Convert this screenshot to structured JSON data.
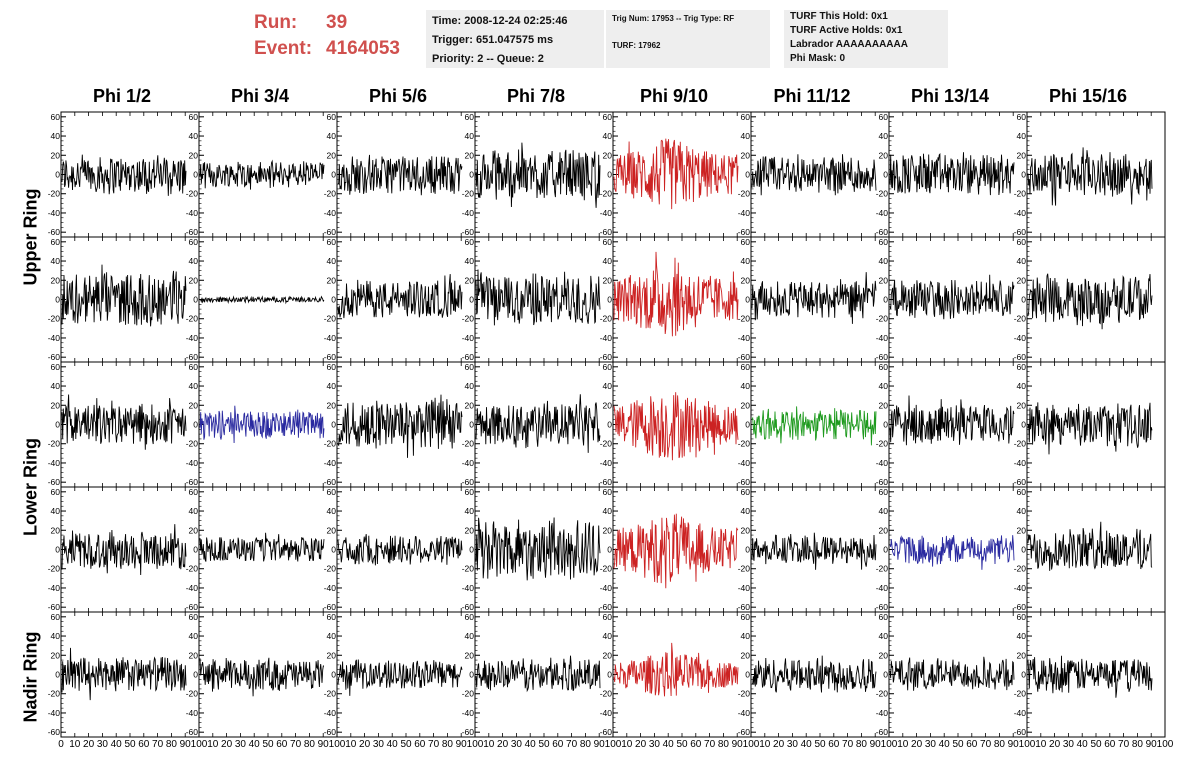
{
  "run": {
    "run_label": "Run:",
    "run_value": "39",
    "event_label": "Event:",
    "event_value": "4164053"
  },
  "info": {
    "time": "Time: 2008-12-24 02:25:46",
    "trigger": "Trigger: 651.047575 ms",
    "priority": "Priority: 2 -- Queue: 2",
    "trig_num": "Trig Num: 17953 -- Trig Type: RF",
    "turf": "TURF: 17962",
    "turf_hold": "TURF This Hold: 0x1",
    "turf_active": "TURF Active Holds: 0x1",
    "labrador": "Labrador AAAAAAAAAA",
    "phi_mask": "Phi Mask: 0"
  },
  "columns": [
    "Phi 1/2",
    "Phi 3/4",
    "Phi 5/6",
    "Phi 7/8",
    "Phi 9/10",
    "Phi 11/12",
    "Phi 13/14",
    "Phi 15/16"
  ],
  "rings": [
    "Upper Ring",
    "Lower Ring",
    "Nadir Ring"
  ],
  "colors": {
    "normal": "#000000",
    "red": "#cc2222",
    "blue": "#2a2aa0",
    "green": "#1e9a1e",
    "accent_text": "#d0504e"
  },
  "chart_data": {
    "type": "line",
    "title": "",
    "xlabel": "",
    "ylabel": "",
    "xlim": [
      0,
      100
    ],
    "ylim": [
      -65,
      65
    ],
    "ytick_labels": [
      "60",
      "40",
      "20",
      "0",
      "-20",
      "-40",
      "-60"
    ],
    "xtick_labels": [
      "0",
      "10",
      "20",
      "30",
      "40",
      "50",
      "60",
      "70",
      "80",
      "90",
      "100"
    ],
    "grid": false,
    "panel_rows": 5,
    "panel_cols": 8,
    "series": [
      {
        "row": 0,
        "col": 0,
        "color": "normal",
        "amplitude": 22
      },
      {
        "row": 0,
        "col": 1,
        "color": "normal",
        "amplitude": 15
      },
      {
        "row": 0,
        "col": 2,
        "color": "normal",
        "amplitude": 22
      },
      {
        "row": 0,
        "col": 3,
        "color": "normal",
        "amplitude": 28
      },
      {
        "row": 0,
        "col": 4,
        "color": "red",
        "amplitude": 38
      },
      {
        "row": 0,
        "col": 5,
        "color": "normal",
        "amplitude": 22
      },
      {
        "row": 0,
        "col": 6,
        "color": "normal",
        "amplitude": 24
      },
      {
        "row": 0,
        "col": 7,
        "color": "normal",
        "amplitude": 24
      },
      {
        "row": 1,
        "col": 0,
        "color": "normal",
        "amplitude": 30
      },
      {
        "row": 1,
        "col": 1,
        "color": "normal",
        "amplitude": 3
      },
      {
        "row": 1,
        "col": 2,
        "color": "normal",
        "amplitude": 22
      },
      {
        "row": 1,
        "col": 3,
        "color": "normal",
        "amplitude": 30
      },
      {
        "row": 1,
        "col": 4,
        "color": "red",
        "amplitude": 40
      },
      {
        "row": 1,
        "col": 5,
        "color": "normal",
        "amplitude": 22
      },
      {
        "row": 1,
        "col": 6,
        "color": "normal",
        "amplitude": 22
      },
      {
        "row": 1,
        "col": 7,
        "color": "normal",
        "amplitude": 27
      },
      {
        "row": 2,
        "col": 0,
        "color": "normal",
        "amplitude": 22
      },
      {
        "row": 2,
        "col": 1,
        "color": "blue",
        "amplitude": 17
      },
      {
        "row": 2,
        "col": 2,
        "color": "normal",
        "amplitude": 28
      },
      {
        "row": 2,
        "col": 3,
        "color": "normal",
        "amplitude": 25
      },
      {
        "row": 2,
        "col": 4,
        "color": "red",
        "amplitude": 38
      },
      {
        "row": 2,
        "col": 5,
        "color": "green",
        "amplitude": 18
      },
      {
        "row": 2,
        "col": 6,
        "color": "normal",
        "amplitude": 22
      },
      {
        "row": 2,
        "col": 7,
        "color": "normal",
        "amplitude": 24
      },
      {
        "row": 3,
        "col": 0,
        "color": "normal",
        "amplitude": 22
      },
      {
        "row": 3,
        "col": 1,
        "color": "normal",
        "amplitude": 14
      },
      {
        "row": 3,
        "col": 2,
        "color": "normal",
        "amplitude": 18
      },
      {
        "row": 3,
        "col": 3,
        "color": "normal",
        "amplitude": 34
      },
      {
        "row": 3,
        "col": 4,
        "color": "red",
        "amplitude": 38
      },
      {
        "row": 3,
        "col": 5,
        "color": "normal",
        "amplitude": 16
      },
      {
        "row": 3,
        "col": 6,
        "color": "blue",
        "amplitude": 16
      },
      {
        "row": 3,
        "col": 7,
        "color": "normal",
        "amplitude": 24
      },
      {
        "row": 4,
        "col": 0,
        "color": "normal",
        "amplitude": 20
      },
      {
        "row": 4,
        "col": 1,
        "color": "normal",
        "amplitude": 18
      },
      {
        "row": 4,
        "col": 2,
        "color": "normal",
        "amplitude": 16
      },
      {
        "row": 4,
        "col": 3,
        "color": "normal",
        "amplitude": 18
      },
      {
        "row": 4,
        "col": 4,
        "color": "red",
        "amplitude": 24
      },
      {
        "row": 4,
        "col": 5,
        "color": "normal",
        "amplitude": 20
      },
      {
        "row": 4,
        "col": 6,
        "color": "normal",
        "amplitude": 17
      },
      {
        "row": 4,
        "col": 7,
        "color": "normal",
        "amplitude": 20
      }
    ]
  }
}
